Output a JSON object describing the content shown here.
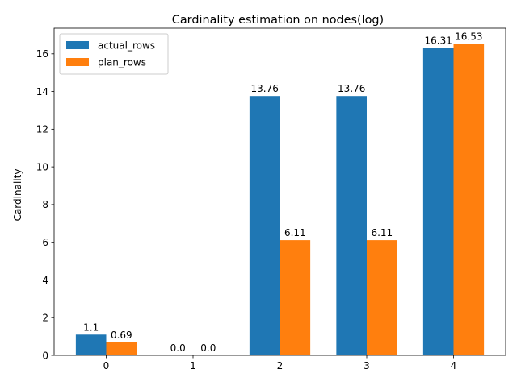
{
  "chart_data": {
    "type": "bar",
    "title": "Cardinality estimation on nodes(log)",
    "xlabel": "",
    "ylabel": "Cardinality",
    "categories": [
      "0",
      "1",
      "2",
      "3",
      "4"
    ],
    "series": [
      {
        "name": "actual_rows",
        "color": "#1f77b4",
        "values": [
          1.1,
          0.0,
          13.76,
          13.76,
          16.31
        ],
        "labels": [
          "1.1",
          "0.0",
          "13.76",
          "13.76",
          "16.31"
        ]
      },
      {
        "name": "plan_rows",
        "color": "#ff7f0e",
        "values": [
          0.69,
          0.0,
          6.11,
          6.11,
          16.53
        ],
        "labels": [
          "0.69",
          "0.0",
          "6.11",
          "6.11",
          "16.53"
        ]
      }
    ],
    "ylim": [
      0,
      17.36
    ],
    "yticks": [
      0,
      2,
      4,
      6,
      8,
      10,
      12,
      14,
      16
    ],
    "grid": false,
    "legend_position": "top-left"
  }
}
